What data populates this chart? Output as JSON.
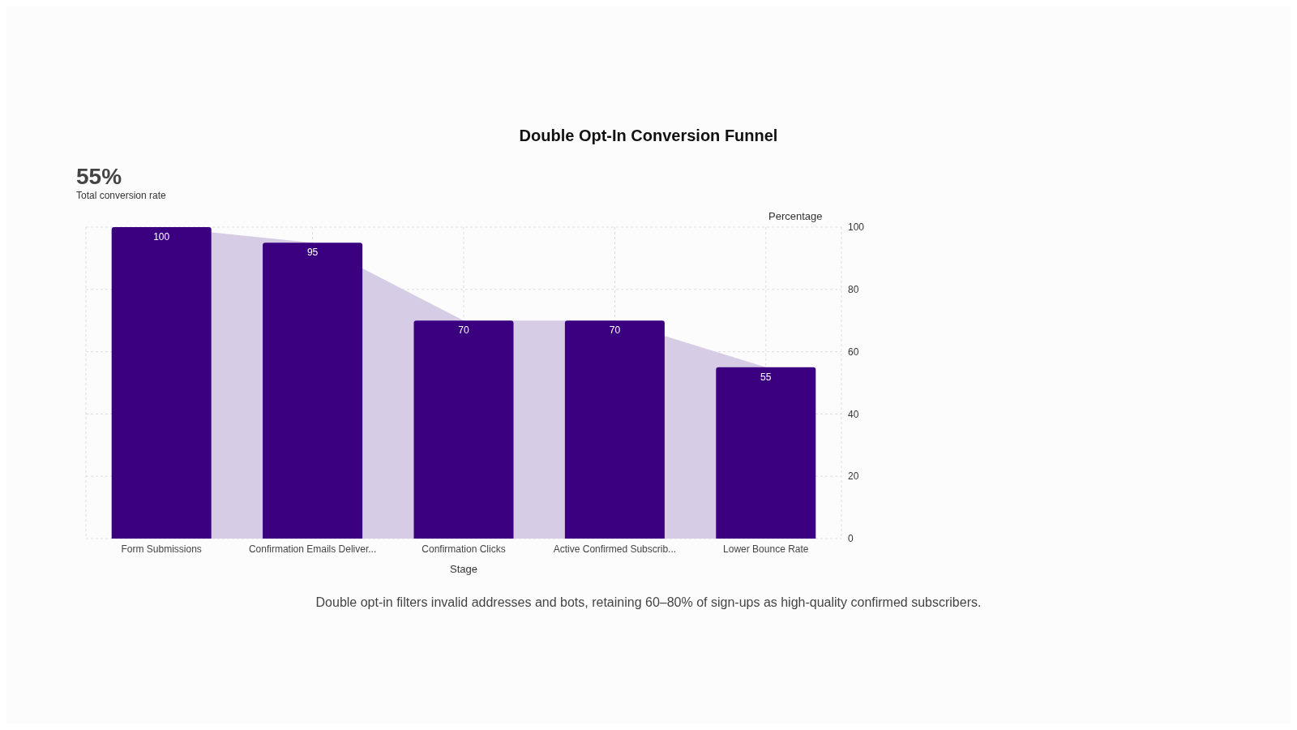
{
  "chart_data": {
    "type": "bar",
    "title": "Double Opt-In Conversion Funnel",
    "xlabel": "Stage",
    "ylabel": "Percentage",
    "categories": [
      "Form Submissions",
      "Confirmation Emails Deliver...",
      "Confirmation Clicks",
      "Active Confirmed Subscrib...",
      "Lower Bounce Rate"
    ],
    "series": [
      {
        "type": "area",
        "color": "#d7cce6",
        "values": [
          100,
          95,
          70,
          70,
          55
        ]
      },
      {
        "color": "#3b0080",
        "values": [
          100,
          95,
          70,
          70,
          55
        ],
        "value_labels": [
          "100",
          "95",
          "70",
          "70",
          "55"
        ]
      }
    ],
    "ylim": [
      0,
      100
    ],
    "yticks": [
      0,
      20,
      40,
      60,
      80,
      100
    ],
    "grid": true,
    "annotations": [
      "55%",
      "Total conversion rate",
      "Double opt-in filters invalid addresses and bots, retaining 60–80% of sign-ups as high-quality confirmed subscribers."
    ]
  }
}
